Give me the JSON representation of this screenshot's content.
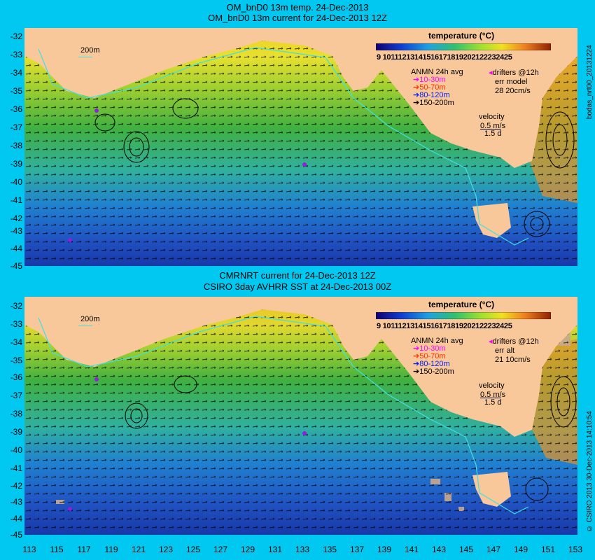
{
  "panels": [
    {
      "title_line1": "OM_bnD0 13m temp. 24-Dec-2013",
      "title_line2": "OM_bnD0 13m current for 24-Dec-2013 12Z",
      "side_label": "bodas_nrt00_20131224",
      "err_line1": "err model",
      "err_line2": "28 20cm/s",
      "ylabels": [
        "-32",
        "-33",
        "-34",
        "-35",
        "-36",
        "-37",
        "-38",
        "-39",
        "-40",
        "-41",
        "-42",
        "-43",
        "-44",
        "-45"
      ]
    },
    {
      "title_line1": "CMRNRT current for 24-Dec-2013 12Z",
      "title_line2": "CSIRO 3day AVHRR SST at 24-Dec-2013 00Z",
      "side_label": "© CSIRO 2013   30-Dec-2013 14:10:54",
      "err_line1": "err alt",
      "err_line2": "21 10cm/s",
      "ylabels": [
        "-32",
        "-33",
        "-34",
        "-35",
        "-36",
        "-37",
        "-38",
        "-39",
        "-40",
        "-41",
        "-42",
        "-43",
        "-44",
        "-45"
      ]
    }
  ],
  "legend": {
    "title": "temperature (°C)",
    "ticks": "9 10111213141516171819202122232425",
    "anmn_title": "ANMN 24h avg",
    "depths": [
      "10-30m",
      "50-70m",
      "80-120m",
      "150-200m"
    ],
    "depth_colors": [
      "#ff00ff",
      "#ff3000",
      "#0020ff",
      "#000000"
    ],
    "drifters": "drifters @12h",
    "velocity": "velocity",
    "velocity_scale": "0.5 m/s",
    "velocity_days": "1.5 d",
    "contour": "200m"
  },
  "xlabels": [
    "113",
    "115",
    "117",
    "119",
    "121",
    "123",
    "125",
    "127",
    "129",
    "131",
    "133",
    "135",
    "137",
    "139",
    "141",
    "143",
    "145",
    "147",
    "149",
    "151",
    "153"
  ],
  "colors": {
    "background": "#00c8f0",
    "land": "#f9c89a",
    "contour": "#40e0e0"
  }
}
